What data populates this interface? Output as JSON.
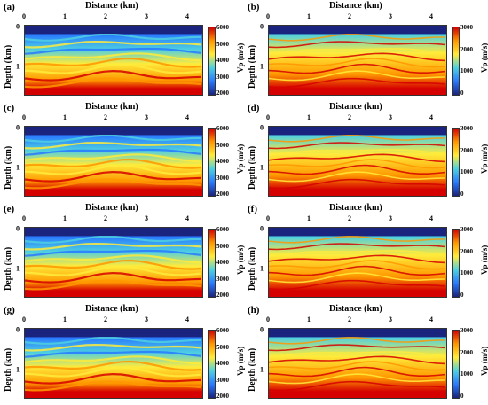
{
  "figure": {
    "xlabel": "Distance (km)",
    "ylabel": "Depth (km)",
    "x_ticks": [
      "0",
      "1",
      "2",
      "3",
      "4"
    ],
    "y_ticks": [
      "0",
      "1"
    ],
    "colorbar_label": "Vp (m/s)",
    "colors": {
      "water": "#1a237e",
      "low": "#2979ff",
      "mid": "#4dd0e1",
      "high": "#ffeb3b",
      "higher": "#ff9800",
      "max": "#d50000"
    },
    "panels": [
      {
        "label": "(a)",
        "cbar_ticks": [
          "6000",
          "5000",
          "4000",
          "3000",
          "2000"
        ],
        "style": "true"
      },
      {
        "label": "(b)",
        "cbar_ticks": [
          "3000",
          "2000",
          "1000",
          "0"
        ],
        "style": "grad"
      },
      {
        "label": "(c)",
        "cbar_ticks": [
          "6000",
          "5000",
          "4000",
          "3000",
          "2000"
        ],
        "style": "true"
      },
      {
        "label": "(d)",
        "cbar_ticks": [
          "3000",
          "2000",
          "1000",
          "0"
        ],
        "style": "grad"
      },
      {
        "label": "(e)",
        "cbar_ticks": [
          "6000",
          "5000",
          "4000",
          "3000",
          "2000"
        ],
        "style": "true"
      },
      {
        "label": "(f)",
        "cbar_ticks": [
          "3000",
          "2000",
          "1000",
          "0"
        ],
        "style": "grad"
      },
      {
        "label": "(g)",
        "cbar_ticks": [
          "6000",
          "5000",
          "4000",
          "3000",
          "2000"
        ],
        "style": "true"
      },
      {
        "label": "(h)",
        "cbar_ticks": [
          "3000",
          "2000",
          "1000",
          "0"
        ],
        "style": "grad"
      }
    ]
  }
}
